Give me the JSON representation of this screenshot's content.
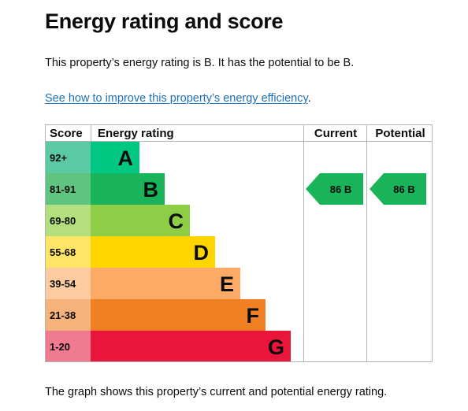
{
  "page": {
    "title": "Energy rating and score",
    "intro": "This property’s energy rating is B. It has the potential to be B.",
    "link_text": "See how to improve this property’s energy efficiency",
    "link_suffix": ".",
    "footer": "The graph shows this property’s current and potential energy rating."
  },
  "table": {
    "headers": {
      "score": "Score",
      "rating": "Energy rating",
      "current": "Current",
      "potential": "Potential"
    },
    "bands": [
      {
        "range": "92+",
        "letter": "A",
        "color": "#00c781",
        "score_bg": "#5bc9a3",
        "letter_color": "#0b0c0c"
      },
      {
        "range": "81-91",
        "letter": "B",
        "color": "#19b459",
        "score_bg": "#5ec47f",
        "letter_color": "#0b0c0c"
      },
      {
        "range": "69-80",
        "letter": "C",
        "color": "#8dce46",
        "score_bg": "#b3df7f",
        "letter_color": "#0b0c0c"
      },
      {
        "range": "55-68",
        "letter": "D",
        "color": "#ffd500",
        "score_bg": "#ffe566",
        "letter_color": "#0b0c0c"
      },
      {
        "range": "39-54",
        "letter": "E",
        "color": "#fcaa65",
        "score_bg": "#fdcba0",
        "letter_color": "#0b0c0c"
      },
      {
        "range": "21-38",
        "letter": "F",
        "color": "#ef8023",
        "score_bg": "#f6b27b",
        "letter_color": "#0b0c0c"
      },
      {
        "range": "1-20",
        "letter": "G",
        "color": "#e9153b",
        "score_bg": "#f07a8f",
        "letter_color": "#0b0c0c"
      }
    ],
    "current": {
      "score": "86",
      "letter": "B",
      "band_index": 1,
      "label": "86 B",
      "color": "#19b459"
    },
    "potential": {
      "score": "86",
      "letter": "B",
      "band_index": 1,
      "label": "86 B",
      "color": "#19b459"
    }
  }
}
